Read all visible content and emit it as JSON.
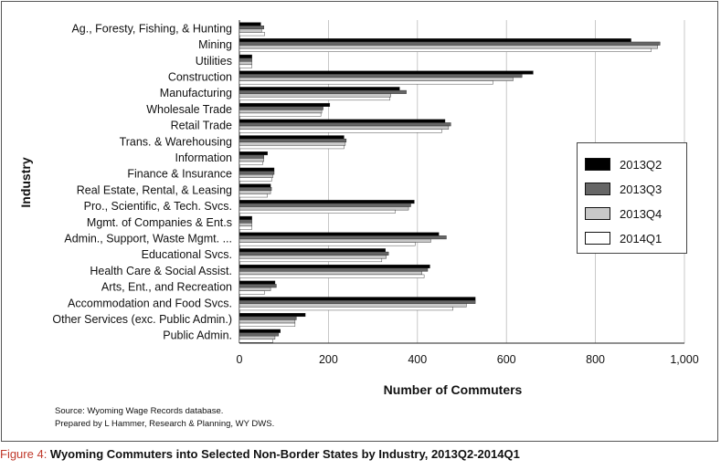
{
  "chart_data": {
    "type": "bar",
    "orientation": "horizontal",
    "ylabel": "Industry",
    "xlabel": "Number of Commuters",
    "xlim": [
      0,
      1000
    ],
    "xticks": [
      "0",
      "200",
      "400",
      "600",
      "800",
      "1,000"
    ],
    "grid": true,
    "legend_position": "right",
    "categories": [
      "Ag., Foresty, Fishing, & Hunting",
      "Mining",
      "Utilities",
      "Construction",
      "Manufacturing",
      "Wholesale Trade",
      "Retail Trade",
      "Trans. & Warehousing",
      "Information",
      "Finance & Insurance",
      "Real Estate, Rental, & Leasing",
      "Pro., Scientific, & Tech. Svcs.",
      "Mgmt. of Companies & Ent.s",
      "Admin., Support, Waste Mgmt. ...",
      "Educational Svcs.",
      "Health Care & Social Assist.",
      "Arts, Ent., and Recreation",
      "Accommodation and Food Svcs.",
      "Other Services (exc. Public Admin.)",
      "Public Admin."
    ],
    "series": [
      {
        "name": "2013Q2",
        "color": "#000000",
        "values": [
          48,
          880,
          28,
          660,
          360,
          203,
          462,
          235,
          63,
          78,
          70,
          393,
          28,
          448,
          328,
          428,
          80,
          530,
          148,
          92
        ]
      },
      {
        "name": "2013Q3",
        "color": "#666666",
        "values": [
          55,
          945,
          28,
          635,
          375,
          188,
          475,
          240,
          55,
          78,
          72,
          385,
          28,
          465,
          335,
          423,
          83,
          530,
          128,
          88
        ]
      },
      {
        "name": "2013Q4",
        "color": "#c8c8c8",
        "values": [
          50,
          940,
          28,
          615,
          340,
          185,
          470,
          238,
          55,
          75,
          70,
          380,
          28,
          430,
          330,
          410,
          70,
          510,
          125,
          80
        ]
      },
      {
        "name": "2014Q1",
        "color": "#ffffff",
        "values": [
          57,
          925,
          28,
          570,
          338,
          183,
          455,
          235,
          52,
          73,
          63,
          350,
          28,
          395,
          320,
          415,
          57,
          480,
          125,
          75
        ]
      }
    ]
  },
  "source": {
    "line1": "Source: Wyoming Wage Records database.",
    "line2": "Prepared by L Hammer, Research & Planning, WY DWS."
  },
  "caption": {
    "lead": "Figure 4: ",
    "text": "Wyoming Commuters into Selected Non-Border States by Industry, 2013Q2-2014Q1"
  }
}
